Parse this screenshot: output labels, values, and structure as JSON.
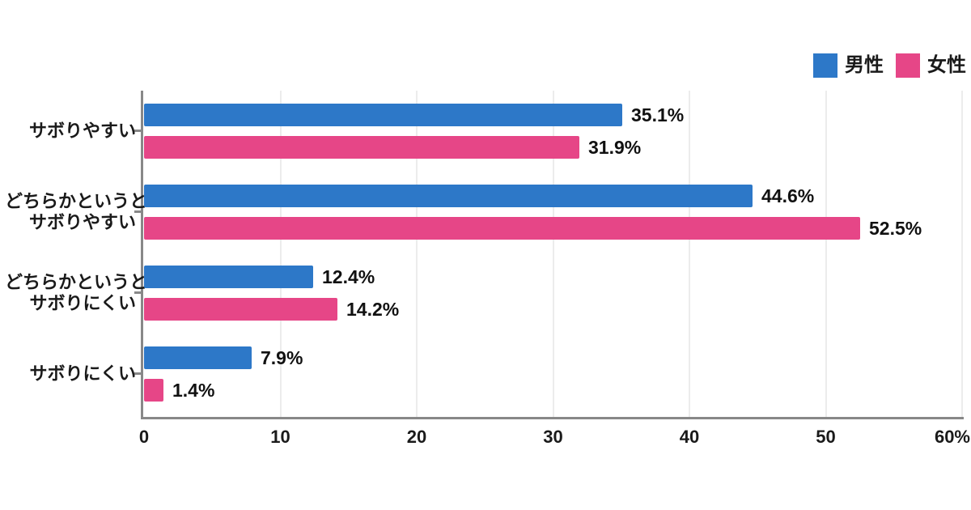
{
  "chart_data": {
    "type": "bar",
    "orientation": "horizontal",
    "title": "",
    "xlabel": "",
    "ylabel": "",
    "categories": [
      {
        "lines": [
          "サボりやすい"
        ]
      },
      {
        "lines": [
          "どちらかというと",
          "サボりやすい"
        ]
      },
      {
        "lines": [
          "どちらかというと",
          "サボりにくい"
        ]
      },
      {
        "lines": [
          "サボりにくい"
        ]
      }
    ],
    "series": [
      {
        "name": "男性",
        "color": "#2d78c8",
        "values": [
          35.1,
          44.6,
          12.4,
          7.9
        ],
        "labels": [
          "35.1%",
          "44.6%",
          "12.4%",
          "7.9%"
        ]
      },
      {
        "name": "女性",
        "color": "#e64687",
        "values": [
          31.9,
          52.5,
          14.2,
          1.4
        ],
        "labels": [
          "31.9%",
          "52.5%",
          "14.2%",
          "1.4%"
        ]
      }
    ],
    "xlim": [
      0,
      60
    ],
    "xticks": [
      0,
      10,
      20,
      30,
      40,
      50,
      60
    ],
    "xtick_labels": [
      "0",
      "10",
      "20",
      "30",
      "40",
      "50",
      "60%"
    ],
    "grid": true,
    "legend_position": "top-right",
    "background": "#ffffff",
    "axis_color": "#888888",
    "grid_color": "#ececec",
    "text_color": "#1a1a1a"
  }
}
